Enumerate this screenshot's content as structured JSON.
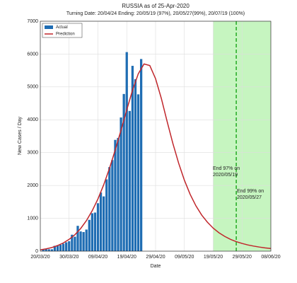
{
  "chart_data": {
    "type": "bar_line",
    "title": "RUSSIA as of 25-Apr-2020",
    "subtitle": "Turning Date: 20/04/24  Ending: 20/05/19 (97%), 20/05/27(99%), 20/07/19 (100%)",
    "xlabel": "Date",
    "ylabel": "New Cases / Day",
    "xlim": [
      0,
      80
    ],
    "ylim": [
      0,
      7000
    ],
    "xticks": [
      {
        "value": 0,
        "label": "20/03/20"
      },
      {
        "value": 10,
        "label": "30/03/20"
      },
      {
        "value": 20,
        "label": "09/04/20"
      },
      {
        "value": 30,
        "label": "19/04/20"
      },
      {
        "value": 40,
        "label": "29/04/20"
      },
      {
        "value": 50,
        "label": "09/05/20"
      },
      {
        "value": 60,
        "label": "19/05/20"
      },
      {
        "value": 70,
        "label": "29/05/20"
      },
      {
        "value": 80,
        "label": "08/06/20"
      }
    ],
    "yticks": [
      0,
      1000,
      2000,
      3000,
      4000,
      5000,
      6000,
      7000
    ],
    "grid": true,
    "legend": "upper left",
    "bars": {
      "name": "Actual",
      "color": "#1f6db3",
      "x": [
        1,
        2,
        3,
        4,
        5,
        6,
        7,
        8,
        9,
        10,
        11,
        12,
        13,
        14,
        15,
        16,
        17,
        18,
        19,
        20,
        21,
        22,
        23,
        24,
        25,
        26,
        27,
        28,
        29,
        30,
        31,
        32,
        33,
        34,
        35
      ],
      "values": [
        53,
        62,
        58,
        57,
        163,
        182,
        196,
        228,
        270,
        302,
        501,
        440,
        771,
        601,
        582,
        658,
        954,
        1154,
        1175,
        1459,
        1786,
        1667,
        2186,
        2558,
        2774,
        3388,
        3448,
        4070,
        4785,
        6060,
        4268,
        5642,
        5236,
        4774,
        5849
      ]
    },
    "line": {
      "name": "Prediction",
      "color": "#c0262b",
      "x": [
        0,
        2,
        4,
        6,
        8,
        10,
        12,
        14,
        16,
        18,
        20,
        22,
        24,
        26,
        28,
        30,
        32,
        34,
        36,
        38,
        40,
        42,
        44,
        46,
        48,
        50,
        52,
        54,
        56,
        58,
        60,
        62,
        64,
        66,
        68,
        70,
        72,
        74,
        76,
        78,
        80
      ],
      "values": [
        40,
        70,
        110,
        170,
        250,
        360,
        500,
        690,
        930,
        1230,
        1590,
        2020,
        2520,
        3080,
        3680,
        4300,
        4900,
        5400,
        5700,
        5650,
        5250,
        4650,
        3950,
        3280,
        2680,
        2160,
        1730,
        1380,
        1100,
        880,
        700,
        560,
        450,
        360,
        290,
        235,
        190,
        155,
        125,
        100,
        80
      ]
    },
    "shaded_region": {
      "color": "#c6f5c0",
      "range": [
        60,
        80
      ]
    },
    "end_line": {
      "color": "#22aa22",
      "x": 68
    },
    "annotations": [
      {
        "lines": [
          "End 97% on",
          "2020/05/19"
        ]
      },
      {
        "lines": [
          "End 99% on",
          "2020/05/27"
        ]
      }
    ]
  }
}
